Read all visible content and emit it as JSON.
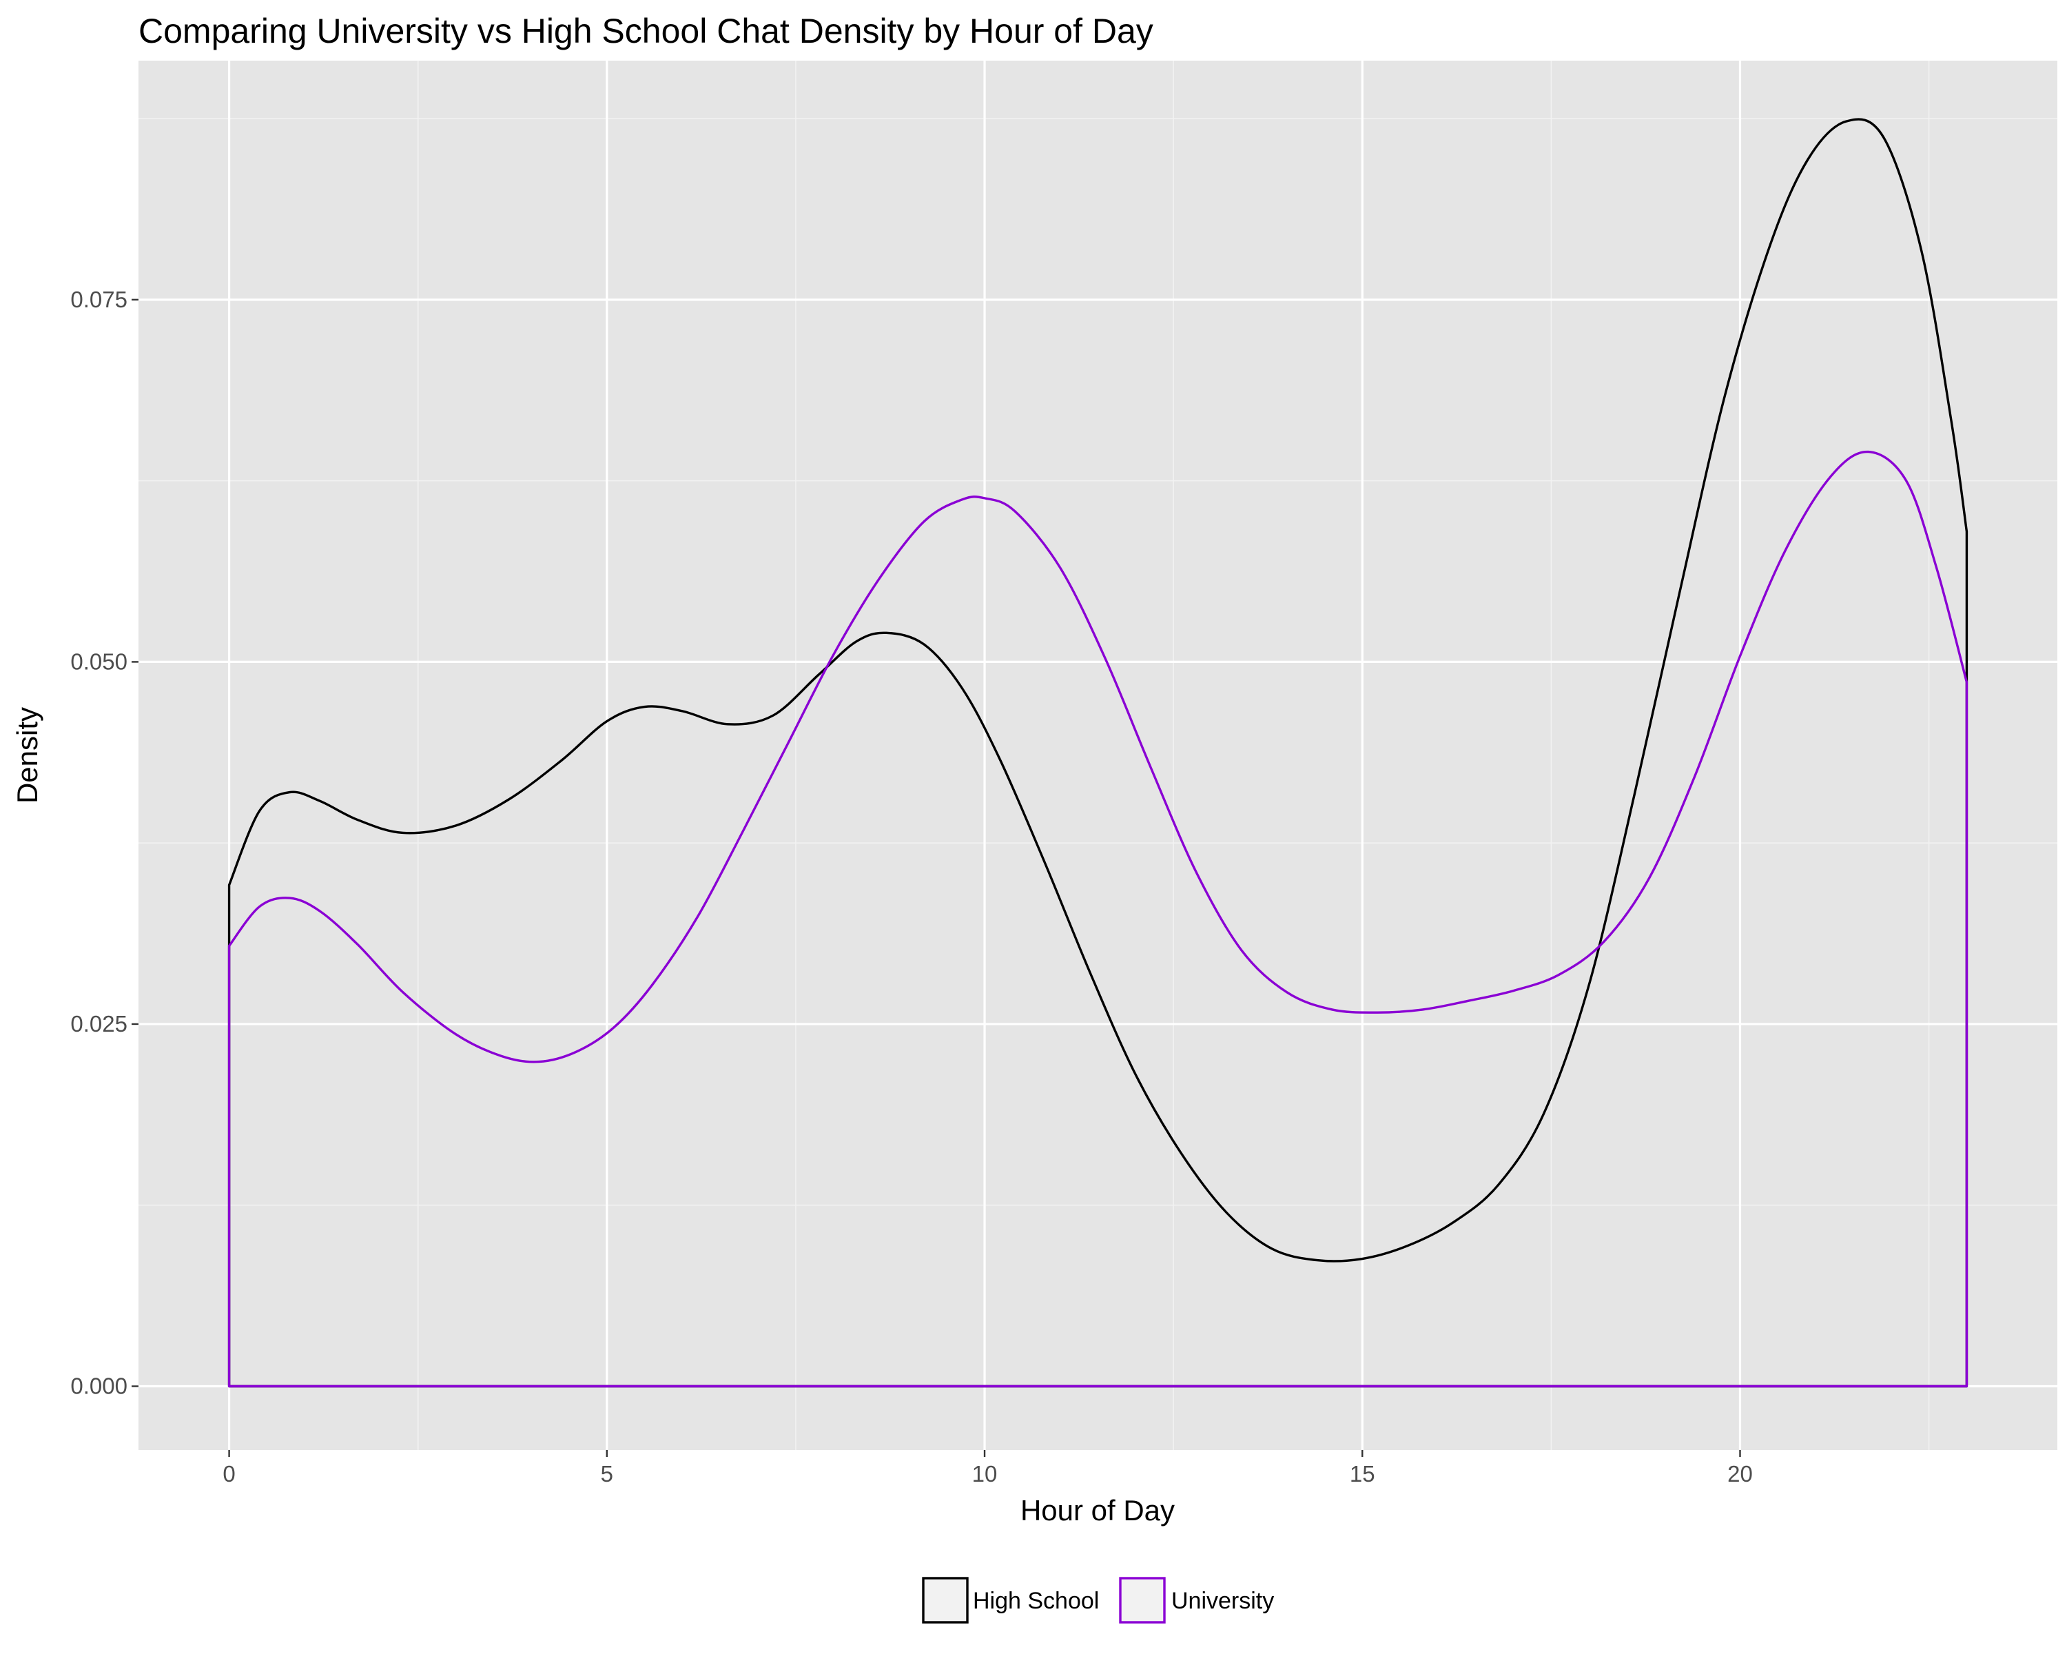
{
  "chart_data": {
    "type": "area",
    "title": "Comparing University vs High School Chat Density by Hour of Day",
    "xlabel": "Hour of Day",
    "ylabel": "Density",
    "xlim": [
      -1.2,
      24.2
    ],
    "ylim": [
      -0.0044,
      0.0915
    ],
    "x_ticks": [
      0,
      5,
      10,
      15,
      20
    ],
    "x_tick_labels": [
      "0",
      "5",
      "10",
      "15",
      "20"
    ],
    "x_minor_ticks": [
      2.5,
      7.5,
      12.5,
      17.5,
      22.5
    ],
    "y_ticks": [
      0.0,
      0.025,
      0.05,
      0.075
    ],
    "y_tick_labels": [
      "0.000",
      "0.025",
      "0.050",
      "0.075"
    ],
    "y_minor_ticks": [
      0.0125,
      0.0375,
      0.0625,
      0.0875
    ],
    "grid": true,
    "legend_position": "bottom",
    "series": [
      {
        "name": "High School",
        "color": "#000000",
        "x": [
          0,
          0.4,
          0.8,
          1.2,
          1.7,
          2.3,
          3,
          3.7,
          4.4,
          5,
          5.5,
          6,
          6.6,
          7.2,
          7.8,
          8.3,
          8.7,
          9.2,
          9.7,
          10.2,
          10.8,
          11.4,
          12,
          12.6,
          13.2,
          13.8,
          14.4,
          15,
          15.6,
          16.2,
          16.8,
          17.4,
          18,
          18.6,
          19.2,
          19.8,
          20.4,
          20.9,
          21.4,
          21.9,
          22.4,
          22.8,
          23
        ],
        "y": [
          0.0346,
          0.0397,
          0.041,
          0.0404,
          0.0391,
          0.0382,
          0.0387,
          0.0405,
          0.0432,
          0.0459,
          0.0469,
          0.0466,
          0.0457,
          0.0463,
          0.0491,
          0.0514,
          0.052,
          0.0512,
          0.0482,
          0.0433,
          0.0361,
          0.0285,
          0.0215,
          0.0161,
          0.012,
          0.0095,
          0.0087,
          0.0088,
          0.0097,
          0.0113,
          0.0139,
          0.0188,
          0.0277,
          0.0408,
          0.0548,
          0.0684,
          0.0788,
          0.0847,
          0.0873,
          0.0862,
          0.0784,
          0.0665,
          0.059
        ]
      },
      {
        "name": "University",
        "color": "#8a00d4",
        "x": [
          0,
          0.4,
          0.8,
          1.2,
          1.7,
          2.3,
          3,
          3.6,
          4.1,
          4.6,
          5.1,
          5.6,
          6.2,
          6.8,
          7.4,
          8,
          8.6,
          9.2,
          9.7,
          10,
          10.4,
          11,
          11.6,
          12.2,
          12.8,
          13.4,
          14,
          14.6,
          15.2,
          15.8,
          16.4,
          17,
          17.6,
          18.2,
          18.8,
          19.4,
          20,
          20.6,
          21.2,
          21.7,
          22.2,
          22.6,
          23
        ],
        "y": [
          0.0304,
          0.0331,
          0.0337,
          0.0328,
          0.0305,
          0.0272,
          0.0243,
          0.0228,
          0.0224,
          0.0231,
          0.0248,
          0.0277,
          0.0324,
          0.0383,
          0.0444,
          0.0505,
          0.0557,
          0.0597,
          0.0612,
          0.0613,
          0.0604,
          0.0565,
          0.0502,
          0.0427,
          0.0355,
          0.0301,
          0.0272,
          0.026,
          0.0258,
          0.026,
          0.0266,
          0.0273,
          0.0284,
          0.0307,
          0.0351,
          0.0421,
          0.0504,
          0.0577,
          0.0628,
          0.0645,
          0.0625,
          0.0565,
          0.0486
        ]
      }
    ]
  }
}
